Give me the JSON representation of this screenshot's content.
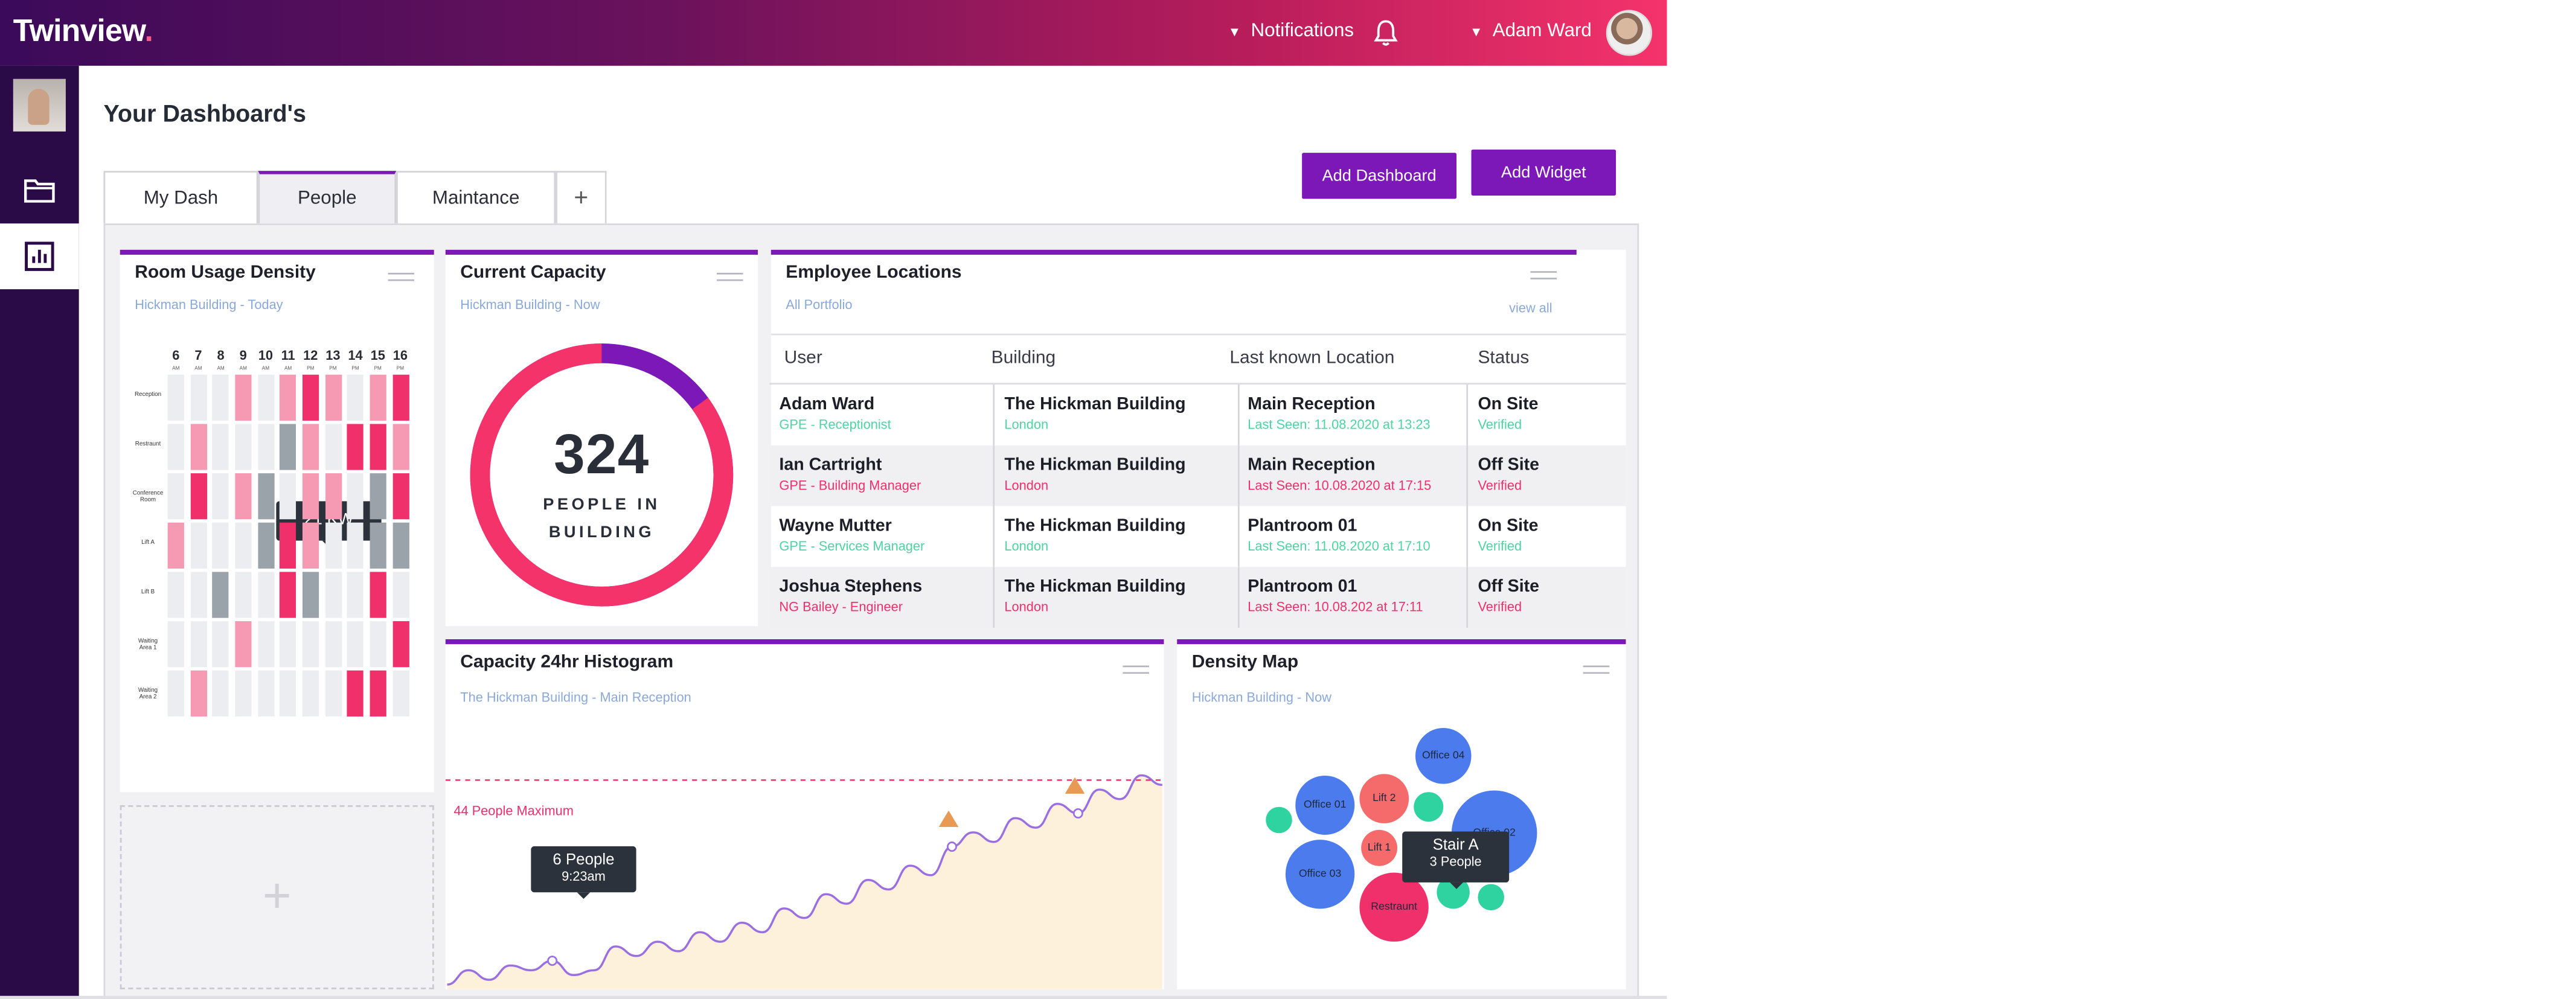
{
  "app": {
    "logo": "Twinview",
    "notifications_label": "Notifications",
    "user_name": "Adam Ward"
  },
  "page": {
    "title": "Your Dashboard's"
  },
  "tabs": [
    {
      "label": "My Dash",
      "active": false
    },
    {
      "label": "People",
      "active": true
    },
    {
      "label": "Maintance",
      "active": false
    },
    {
      "label": "+",
      "active": false
    }
  ],
  "actions": {
    "add_dashboard": "Add Dashboard",
    "add_widget": "Add Widget"
  },
  "colors": {
    "accent": "#7d18b8",
    "pink": "#f0306b",
    "green": "#4ed3a2",
    "blue_link": "#8aa8d8",
    "heat_high": "#f0306b",
    "heat_mid": "#f59ab2",
    "heat_grey": "#9aa3aa"
  },
  "room_usage": {
    "title": "Room Usage Density",
    "subtitle": "Hickman Building - Today",
    "hours": [
      {
        "h": "6",
        "p": "AM"
      },
      {
        "h": "7",
        "p": "AM"
      },
      {
        "h": "8",
        "p": "AM"
      },
      {
        "h": "9",
        "p": "AM"
      },
      {
        "h": "10",
        "p": "AM"
      },
      {
        "h": "11",
        "p": "AM"
      },
      {
        "h": "12",
        "p": "PM"
      },
      {
        "h": "13",
        "p": "PM"
      },
      {
        "h": "14",
        "p": "PM"
      },
      {
        "h": "15",
        "p": "PM"
      },
      {
        "h": "16",
        "p": "PM"
      }
    ],
    "rooms": [
      "Reception",
      "Restraunt",
      "Conference Room",
      "Lift A",
      "Lift B",
      "Waiting Area 1",
      "Waiting Area 2"
    ],
    "grid_levels": [
      [
        0,
        0,
        0,
        2,
        0,
        2,
        3,
        2,
        0,
        2,
        3
      ],
      [
        0,
        2,
        0,
        0,
        0,
        1,
        2,
        0,
        3,
        3,
        2
      ],
      [
        0,
        3,
        0,
        2,
        1,
        0,
        2,
        2,
        0,
        1,
        3
      ],
      [
        2,
        0,
        0,
        0,
        1,
        3,
        2,
        0,
        0,
        1,
        1
      ],
      [
        0,
        0,
        1,
        0,
        0,
        3,
        1,
        0,
        0,
        3,
        0
      ],
      [
        0,
        0,
        0,
        2,
        0,
        0,
        0,
        0,
        0,
        0,
        3
      ],
      [
        0,
        2,
        0,
        0,
        0,
        0,
        0,
        0,
        3,
        3,
        0
      ]
    ],
    "tooltip": "21 KW"
  },
  "capacity": {
    "title": "Current Capacity",
    "subtitle": "Hickman Building - Now",
    "value": "324",
    "label": "PEOPLE IN BUILDING",
    "fraction": 0.85
  },
  "employees": {
    "title": "Employee Locations",
    "subtitle": "All Portfolio",
    "view_all": "view all",
    "headers": [
      "User",
      "Building",
      "Last known Location",
      "Status"
    ],
    "rows": [
      {
        "user": "Adam Ward",
        "role": "GPE - Receptionist",
        "building": "The Hickman Building",
        "city": "London",
        "location": "Main Reception",
        "seen": "Last Seen: 11.08.2020 at 13:23",
        "status": "On Site",
        "verified": "Verified",
        "onsite": true
      },
      {
        "user": "Ian Cartright",
        "role": "GPE - Building Manager",
        "building": "The Hickman Building",
        "city": "London",
        "location": "Main Reception",
        "seen": "Last Seen: 10.08.2020 at 17:15",
        "status": "Off Site",
        "verified": "Verified",
        "onsite": false
      },
      {
        "user": "Wayne Mutter",
        "role": "GPE - Services Manager",
        "building": "The Hickman Building",
        "city": "London",
        "location": "Plantroom 01",
        "seen": "Last Seen: 11.08.2020 at 17:10",
        "status": "On Site",
        "verified": "Verified",
        "onsite": true
      },
      {
        "user": "Joshua Stephens",
        "role": "NG Bailey - Engineer",
        "building": "The Hickman Building",
        "city": "London",
        "location": "Plantroom 01",
        "seen": "Last Seen: 10.08.202 at 17:11",
        "status": "Off Site",
        "verified": "Verified",
        "onsite": false
      }
    ]
  },
  "histogram": {
    "title": "Capacity 24hr Histogram",
    "subtitle": "The Hickman Building - Main Reception",
    "max_label": "44 People Maximum",
    "max_value": 44,
    "tooltip_value": "6 People",
    "tooltip_time": "9:23am"
  },
  "chart_data": {
    "type": "area",
    "title": "Capacity 24hr Histogram",
    "x": [
      0,
      1,
      2,
      3,
      4,
      5,
      6,
      7,
      8,
      9,
      10,
      11,
      12,
      13,
      14,
      15,
      16,
      17,
      18,
      19,
      20,
      21,
      22,
      23,
      24,
      25,
      26,
      27,
      28,
      29,
      30,
      31,
      32,
      33,
      34
    ],
    "y": [
      1,
      4,
      2,
      5,
      4,
      6,
      3,
      4,
      9,
      7,
      10,
      8,
      12,
      10,
      14,
      12,
      17,
      15,
      20,
      18,
      23,
      21,
      26,
      24,
      30,
      33,
      31,
      36,
      34,
      39,
      37,
      42,
      40,
      45,
      43
    ],
    "threshold": 44,
    "ylim": [
      0,
      56
    ]
  },
  "density": {
    "title": "Density Map",
    "subtitle": "Hickman Building - Now",
    "bubbles": [
      {
        "label": "Office 04",
        "color": "#4b7bec"
      },
      {
        "label": "Office 01",
        "color": "#4b7bec"
      },
      {
        "label": "Lift 2",
        "color": "#f56b6b"
      },
      {
        "label": "Office 02",
        "color": "#4b7bec"
      },
      {
        "label": "Lift 1",
        "color": "#f56b6b"
      },
      {
        "label": "Office 03",
        "color": "#4b7bec"
      },
      {
        "label": "Restraunt",
        "color": "#f0306b"
      },
      {
        "label": "",
        "color": "#2ed3a0"
      },
      {
        "label": "",
        "color": "#2ed3a0"
      },
      {
        "label": "",
        "color": "#2ed3a0"
      },
      {
        "label": "",
        "color": "#2ed3a0"
      }
    ],
    "tooltip_title": "Stair A",
    "tooltip_sub": "3 People"
  }
}
